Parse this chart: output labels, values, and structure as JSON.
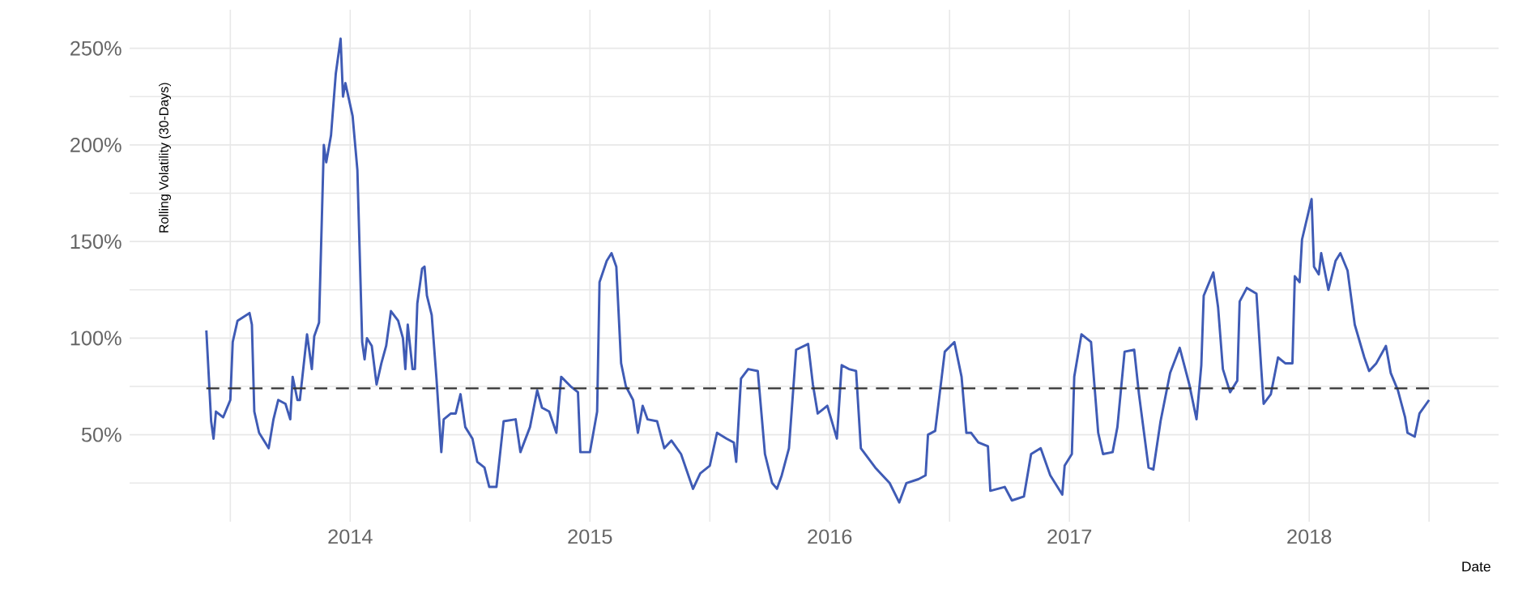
{
  "chart_data": {
    "type": "line",
    "xlabel": "Date",
    "ylabel": "Rolling Volatility (30-Days)",
    "xlim": [
      2013.08,
      2018.79
    ],
    "ylim": [
      5,
      270
    ],
    "xticks": [
      {
        "value": 2013.5,
        "label": null
      },
      2014,
      {
        "value": 2014.5,
        "label": null
      },
      2015,
      {
        "value": 2015.5,
        "label": null
      },
      2016,
      {
        "value": 2016.5,
        "label": null
      },
      2017,
      {
        "value": 2017.5,
        "label": null
      },
      2018,
      {
        "value": 2018.5,
        "label": null
      }
    ],
    "yticks": [
      {
        "value": 25,
        "label": null
      },
      {
        "value": 50,
        "label": "50%"
      },
      {
        "value": 75,
        "label": null
      },
      {
        "value": 100,
        "label": "100%"
      },
      {
        "value": 125,
        "label": null
      },
      {
        "value": 150,
        "label": "150%"
      },
      {
        "value": 175,
        "label": null
      },
      {
        "value": 200,
        "label": "200%"
      },
      {
        "value": 225,
        "label": null
      },
      {
        "value": 250,
        "label": "250%"
      }
    ],
    "grid": true,
    "ref_lines": [
      {
        "axis": "y",
        "value": 74,
        "color": "#333333",
        "line_style": "dashed"
      }
    ],
    "series": [
      {
        "color": "#3f5bb5",
        "x": [
          2013.4,
          2013.42,
          2013.43,
          2013.44,
          2013.47,
          2013.5,
          2013.51,
          2013.53,
          2013.58,
          2013.59,
          2013.6,
          2013.62,
          2013.66,
          2013.68,
          2013.7,
          2013.73,
          2013.75,
          2013.76,
          2013.78,
          2013.79,
          2013.82,
          2013.84,
          2013.85,
          2013.87,
          2013.89,
          2013.9,
          2013.92,
          2013.94,
          2013.96,
          2013.97,
          2013.98,
          2014.01,
          2014.03,
          2014.05,
          2014.06,
          2014.07,
          2014.09,
          2014.11,
          2014.13,
          2014.15,
          2014.17,
          2014.2,
          2014.22,
          2014.23,
          2014.24,
          2014.26,
          2014.27,
          2014.28,
          2014.3,
          2014.31,
          2014.32,
          2014.34,
          2014.36,
          2014.38,
          2014.39,
          2014.42,
          2014.44,
          2014.46,
          2014.48,
          2014.51,
          2014.53,
          2014.56,
          2014.58,
          2014.61,
          2014.64,
          2014.69,
          2014.71,
          2014.75,
          2014.78,
          2014.8,
          2014.83,
          2014.86,
          2014.88,
          2014.92,
          2014.95,
          2014.96,
          2015.0,
          2015.03,
          2015.04,
          2015.07,
          2015.09,
          2015.11,
          2015.13,
          2015.15,
          2015.18,
          2015.2,
          2015.22,
          2015.24,
          2015.28,
          2015.31,
          2015.34,
          2015.38,
          2015.43,
          2015.46,
          2015.5,
          2015.53,
          2015.57,
          2015.6,
          2015.61,
          2015.63,
          2015.66,
          2015.7,
          2015.73,
          2015.76,
          2015.78,
          2015.8,
          2015.83,
          2015.86,
          2015.91,
          2015.93,
          2015.95,
          2015.99,
          2016.03,
          2016.05,
          2016.08,
          2016.11,
          2016.13,
          2016.19,
          2016.25,
          2016.29,
          2016.32,
          2016.37,
          2016.4,
          2016.41,
          2016.44,
          2016.48,
          2016.52,
          2016.55,
          2016.57,
          2016.59,
          2016.62,
          2016.66,
          2016.67,
          2016.73,
          2016.76,
          2016.81,
          2016.84,
          2016.88,
          2016.92,
          2016.97,
          2016.98,
          2017.01,
          2017.02,
          2017.05,
          2017.09,
          2017.12,
          2017.14,
          2017.18,
          2017.2,
          2017.23,
          2017.27,
          2017.29,
          2017.33,
          2017.35,
          2017.38,
          2017.42,
          2017.46,
          2017.5,
          2017.53,
          2017.55,
          2017.56,
          2017.6,
          2017.62,
          2017.64,
          2017.67,
          2017.7,
          2017.71,
          2017.74,
          2017.78,
          2017.8,
          2017.81,
          2017.84,
          2017.87,
          2017.9,
          2017.93,
          2017.94,
          2017.96,
          2017.97,
          2018.01,
          2018.02,
          2018.04,
          2018.05,
          2018.08,
          2018.11,
          2018.13,
          2018.16,
          2018.19,
          2018.23,
          2018.25,
          2018.28,
          2018.32,
          2018.34,
          2018.37,
          2018.4,
          2018.41,
          2018.44,
          2018.46,
          2018.5
        ],
        "values": [
          104,
          57,
          48,
          62,
          59,
          68,
          98,
          109,
          113,
          107,
          62,
          51,
          43,
          58,
          68,
          66,
          58,
          80,
          68,
          68,
          102,
          84,
          101,
          108,
          200,
          191,
          205,
          237,
          255,
          225,
          232,
          215,
          187,
          98,
          89,
          100,
          96,
          76,
          87,
          96,
          114,
          109,
          100,
          84,
          107,
          84,
          84,
          118,
          136,
          137,
          122,
          112,
          79,
          41,
          58,
          61,
          61,
          71,
          54,
          48,
          36,
          33,
          23,
          23,
          57,
          58,
          41,
          54,
          73,
          64,
          62,
          51,
          80,
          75,
          72,
          41,
          41,
          62,
          129,
          140,
          144,
          137,
          87,
          75,
          68,
          51,
          65,
          58,
          57,
          43,
          47,
          40,
          22,
          30,
          34,
          51,
          48,
          46,
          36,
          79,
          84,
          83,
          40,
          25,
          22,
          29,
          43,
          94,
          97,
          76,
          61,
          65,
          48,
          86,
          84,
          83,
          43,
          33,
          25,
          15,
          25,
          27,
          29,
          50,
          52,
          93,
          98,
          80,
          51,
          51,
          46,
          44,
          21,
          23,
          16,
          18,
          40,
          43,
          29,
          19,
          34,
          40,
          80,
          102,
          98,
          51,
          40,
          41,
          54,
          93,
          94,
          71,
          33,
          32,
          57,
          82,
          95,
          76,
          58,
          86,
          122,
          134,
          116,
          84,
          72,
          78,
          119,
          126,
          123,
          84,
          66,
          71,
          90,
          87,
          87,
          132,
          129,
          151,
          172,
          137,
          133,
          144,
          125,
          140,
          144,
          135,
          107,
          90,
          83,
          87,
          96,
          82,
          73,
          59,
          51,
          49,
          61,
          68
        ]
      }
    ]
  }
}
